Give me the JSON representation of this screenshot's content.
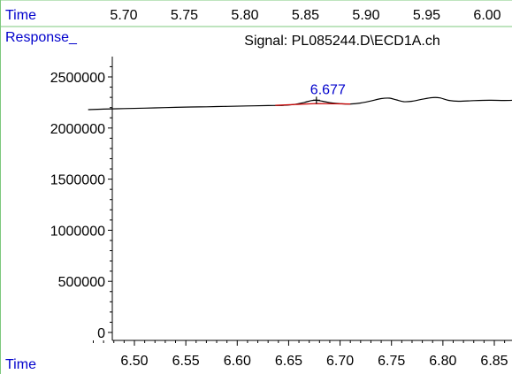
{
  "chart_data": {
    "type": "line",
    "top_axis": {
      "label": "Time",
      "ticks": [
        5.7,
        5.75,
        5.8,
        5.85,
        5.9,
        5.95,
        6.0
      ],
      "tick_labels": [
        "5.70",
        "5.75",
        "5.80",
        "5.85",
        "5.90",
        "5.95",
        "6.00"
      ]
    },
    "ylabel": "Response_",
    "title": "Signal: PL085244.D\\ECD1A.ch",
    "xlabel": "Time",
    "xlim": [
      6.455,
      6.88
    ],
    "ylim": [
      0,
      2700000
    ],
    "x_ticks": [
      6.5,
      6.55,
      6.6,
      6.65,
      6.7,
      6.75,
      6.8,
      6.85
    ],
    "x_tick_labels": [
      "6.50",
      "6.55",
      "6.60",
      "6.65",
      "6.70",
      "6.75",
      "6.80",
      "6.85"
    ],
    "y_ticks": [
      0,
      500000,
      1000000,
      1500000,
      2000000,
      2500000
    ],
    "y_tick_labels": [
      "0",
      "500000",
      "1000000",
      "1500000",
      "2000000",
      "2500000"
    ],
    "series": [
      {
        "color": "#000000",
        "x": [
          6.455,
          6.47,
          6.49,
          6.51,
          6.53,
          6.55,
          6.57,
          6.59,
          6.61,
          6.63,
          6.645,
          6.655,
          6.665,
          6.672,
          6.677,
          6.683,
          6.69,
          6.7,
          6.71,
          6.72,
          6.73,
          6.74,
          6.748,
          6.755,
          6.762,
          6.77,
          6.78,
          6.79,
          6.797,
          6.805,
          6.815,
          6.83,
          6.845,
          6.86,
          6.88
        ],
        "y": [
          2180000,
          2185000,
          2190000,
          2195000,
          2200000,
          2205000,
          2208000,
          2212000,
          2216000,
          2220000,
          2222000,
          2230000,
          2250000,
          2268000,
          2272000,
          2262000,
          2248000,
          2238000,
          2235000,
          2245000,
          2265000,
          2288000,
          2292000,
          2275000,
          2258000,
          2262000,
          2282000,
          2298000,
          2295000,
          2272000,
          2262000,
          2268000,
          2272000,
          2270000,
          2275000
        ]
      }
    ],
    "baseline": {
      "color": "#cc0000",
      "x": [
        6.637,
        6.677,
        6.71
      ],
      "y": [
        2222000,
        2240000,
        2235000
      ]
    },
    "peak": {
      "label": "6.677",
      "x": 6.677,
      "y": 2272000,
      "color": "#0000cc"
    },
    "label_color": "#0000cc",
    "frame_color": "#7ec87e",
    "grid": false,
    "legend": "none"
  }
}
